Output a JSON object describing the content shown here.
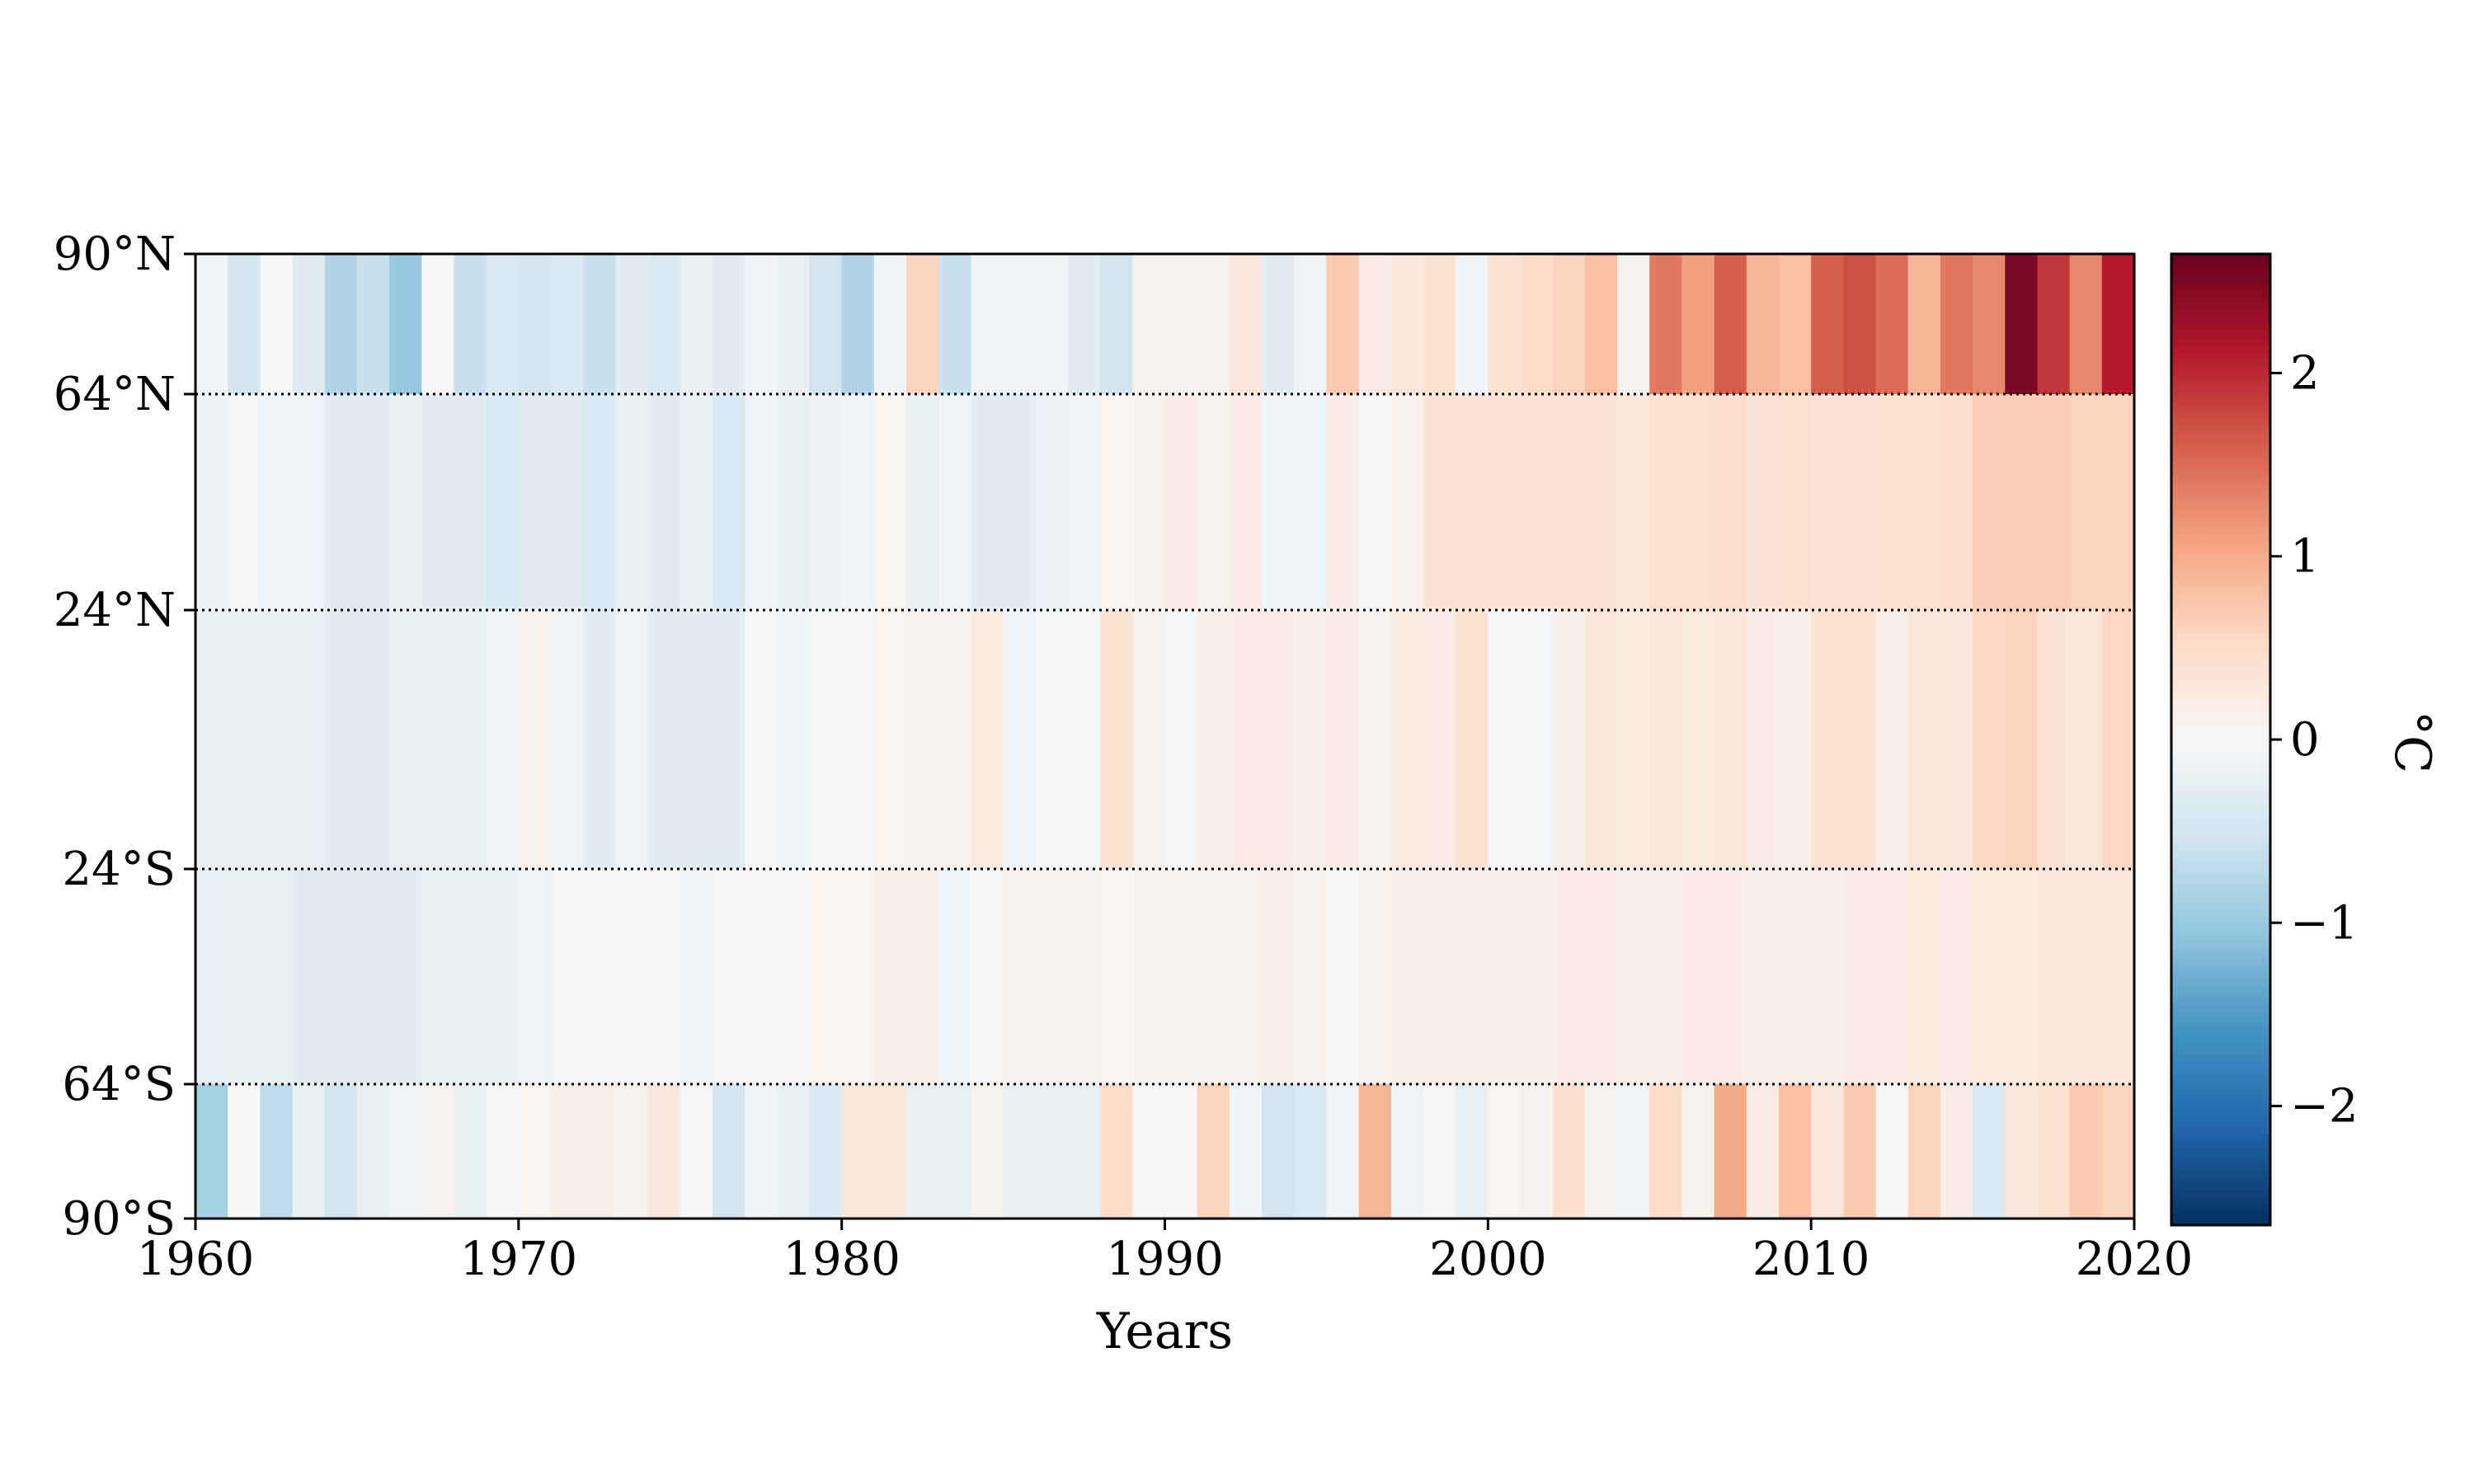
{
  "chart_data": {
    "type": "heatmap",
    "xlabel": "Years",
    "colorbar_label": "°C",
    "x_range": [
      1960,
      2020
    ],
    "x_ticks": [
      "1960",
      "1970",
      "1980",
      "1990",
      "2000",
      "2010",
      "2020"
    ],
    "x_tick_values": [
      1960,
      1970,
      1980,
      1990,
      2000,
      2010,
      2020
    ],
    "y_tick_labels": [
      "90°N",
      "64°N",
      "24°N",
      "24°S",
      "64°S",
      "90°S"
    ],
    "bands": [
      "64°N–90°N",
      "24°N–64°N",
      "24°S–24°N",
      "64°S–24°S",
      "90°S–64°S"
    ],
    "colorbar_ticks": [
      "2",
      "1",
      "0",
      "−1",
      "−2"
    ],
    "colorbar_tick_values": [
      2,
      1,
      0,
      -1,
      -2
    ],
    "colorbar_range": [
      -2.65,
      2.65
    ],
    "colormap": "RdBu_r",
    "colormap_stops": [
      "#053061",
      "#2166ac",
      "#4393c3",
      "#92c5de",
      "#d1e5f0",
      "#f7f7f7",
      "#fddbc7",
      "#f4a582",
      "#d6604d",
      "#b2182b",
      "#67001f"
    ],
    "years": [
      1960,
      1961,
      1962,
      1963,
      1964,
      1965,
      1966,
      1967,
      1968,
      1969,
      1970,
      1971,
      1972,
      1973,
      1974,
      1975,
      1976,
      1977,
      1978,
      1979,
      1980,
      1981,
      1982,
      1983,
      1984,
      1985,
      1986,
      1987,
      1988,
      1989,
      1990,
      1991,
      1992,
      1993,
      1994,
      1995,
      1996,
      1997,
      1998,
      1999,
      2000,
      2001,
      2002,
      2003,
      2004,
      2005,
      2006,
      2007,
      2008,
      2009,
      2010,
      2011,
      2012,
      2013,
      2014,
      2015,
      2016,
      2017,
      2018,
      2019
    ],
    "grid_lines_at": [
      "64°N",
      "24°N",
      "24°S",
      "64°S"
    ],
    "grid_style": "dotted",
    "values": [
      [
        -0.1,
        -0.5,
        0.0,
        -0.3,
        -0.8,
        -0.6,
        -1.0,
        0.0,
        -0.6,
        -0.4,
        -0.5,
        -0.4,
        -0.6,
        -0.3,
        -0.4,
        -0.2,
        -0.3,
        -0.1,
        -0.2,
        -0.5,
        -0.8,
        -0.1,
        0.6,
        -0.6,
        -0.1,
        -0.1,
        -0.1,
        -0.3,
        -0.5,
        0.1,
        0.1,
        0.1,
        0.3,
        -0.3,
        -0.1,
        0.7,
        0.2,
        0.3,
        0.4,
        -0.1,
        0.4,
        0.5,
        0.6,
        0.8,
        0.1,
        1.4,
        1.1,
        1.6,
        0.9,
        0.8,
        1.6,
        1.7,
        1.5,
        0.9,
        1.4,
        1.3,
        2.5,
        1.9,
        1.3,
        2.1
      ],
      [
        -0.15,
        -0.05,
        -0.1,
        -0.1,
        -0.3,
        -0.3,
        -0.2,
        -0.3,
        -0.3,
        -0.4,
        -0.3,
        -0.3,
        -0.4,
        -0.2,
        -0.3,
        -0.2,
        -0.4,
        -0.1,
        -0.2,
        -0.15,
        -0.1,
        0.05,
        -0.2,
        -0.1,
        -0.3,
        -0.3,
        -0.15,
        -0.1,
        0.05,
        0.1,
        0.2,
        0.1,
        0.2,
        -0.1,
        -0.1,
        0.2,
        -0.05,
        0.1,
        0.35,
        0.35,
        0.35,
        0.35,
        0.35,
        0.35,
        0.3,
        0.4,
        0.4,
        0.45,
        0.35,
        0.4,
        0.35,
        0.35,
        0.4,
        0.4,
        0.45,
        0.65,
        0.65,
        0.65,
        0.6,
        0.6
      ],
      [
        -0.2,
        -0.2,
        -0.2,
        -0.2,
        -0.3,
        -0.3,
        -0.2,
        -0.2,
        -0.2,
        -0.1,
        0.1,
        -0.1,
        -0.3,
        -0.1,
        -0.3,
        -0.3,
        -0.3,
        0.0,
        -0.1,
        0.0,
        0.0,
        0.05,
        0.1,
        0.1,
        0.25,
        -0.1,
        0.0,
        0.0,
        0.4,
        0.1,
        -0.05,
        0.15,
        0.2,
        0.2,
        0.15,
        0.2,
        0.1,
        0.25,
        0.2,
        0.4,
        0.0,
        0.0,
        0.15,
        0.3,
        0.25,
        0.3,
        0.25,
        0.3,
        0.2,
        0.15,
        0.4,
        0.4,
        0.15,
        0.3,
        0.3,
        0.55,
        0.6,
        0.35,
        0.3,
        0.55
      ],
      [
        -0.25,
        -0.2,
        -0.2,
        -0.3,
        -0.3,
        -0.3,
        -0.3,
        -0.2,
        -0.2,
        -0.2,
        -0.1,
        -0.05,
        -0.05,
        -0.05,
        0.0,
        -0.1,
        -0.05,
        0.0,
        0.0,
        0.05,
        0.05,
        0.15,
        0.15,
        -0.1,
        -0.05,
        0.1,
        0.1,
        0.1,
        0.05,
        0.1,
        0.1,
        0.1,
        0.1,
        0.15,
        0.1,
        0.0,
        0.1,
        0.15,
        0.15,
        0.15,
        0.15,
        0.15,
        0.2,
        0.2,
        0.15,
        0.15,
        0.2,
        0.2,
        0.15,
        0.15,
        0.15,
        0.2,
        0.2,
        0.25,
        0.2,
        0.25,
        0.25,
        0.3,
        0.3,
        0.3
      ],
      [
        -0.9,
        0.0,
        -0.7,
        -0.2,
        -0.5,
        -0.2,
        -0.1,
        0.1,
        -0.2,
        0.0,
        0.05,
        0.15,
        0.15,
        0.1,
        0.3,
        0.0,
        -0.5,
        -0.1,
        -0.2,
        -0.4,
        0.3,
        0.3,
        -0.2,
        -0.2,
        0.1,
        -0.2,
        -0.2,
        -0.2,
        0.5,
        0.0,
        0.0,
        0.6,
        -0.1,
        -0.5,
        -0.4,
        -0.1,
        0.9,
        -0.1,
        0.0,
        -0.2,
        0.05,
        0.1,
        0.45,
        0.1,
        -0.1,
        0.5,
        0.1,
        1.0,
        0.2,
        0.8,
        0.3,
        0.7,
        0.0,
        0.6,
        0.2,
        -0.4,
        0.3,
        0.4,
        0.7,
        0.6
      ]
    ]
  }
}
